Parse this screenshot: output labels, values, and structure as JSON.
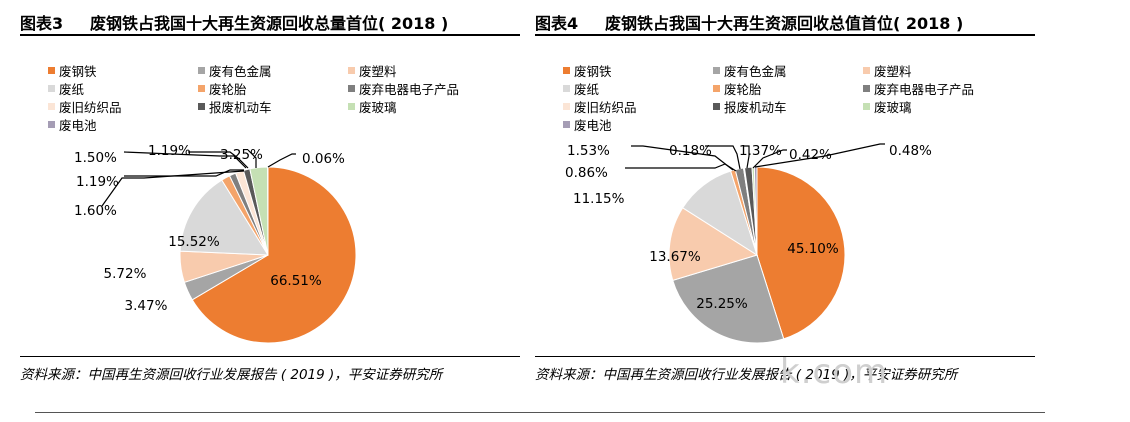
{
  "figures": [
    {
      "label": "图表3",
      "title": "废钢铁占我国十大再生资源回收总量首位( 2018 )",
      "source": "资料来源：中国再生资源回收行业发展报告 ( 2019 )，平安证券研究所"
    },
    {
      "label": "图表4",
      "title": "废钢铁占我国十大再生资源回收总值首位( 2018 )",
      "source": "资料来源：中国再生资源回收行业发展报告 ( 2019 )，平安证券研究所"
    }
  ],
  "legend": [
    "废钢铁",
    "废有色金属",
    "废塑料",
    "废纸",
    "废轮胎",
    "废弃电器电子产品",
    "废旧纺织品",
    "报废机动车",
    "废玻璃",
    "废电池"
  ],
  "colors": [
    "#ED7D31",
    "#A5A5A5",
    "#F8CBAD",
    "#D9D9D9",
    "#F4A46A",
    "#7F7F7F",
    "#FBE5D6",
    "#595959",
    "#C5E0B4",
    "#A59DB5"
  ],
  "watermark": "k.com",
  "chart_data": [
    {
      "type": "pie",
      "title": "废钢铁占我国十大再生资源回收总量首位( 2018 )",
      "categories": [
        "废钢铁",
        "废有色金属",
        "废塑料",
        "废纸",
        "废轮胎",
        "废弃电器电子产品",
        "废旧纺织品",
        "报废机动车",
        "废玻璃",
        "废电池"
      ],
      "values": [
        66.51,
        3.47,
        5.72,
        15.52,
        1.6,
        1.19,
        1.5,
        1.19,
        3.25,
        0.06
      ],
      "labels": [
        "66.51%",
        "3.47%",
        "5.72%",
        "15.52%",
        "1.60%",
        "1.19%",
        "1.50%",
        "1.19%",
        "3.25%",
        "0.06%"
      ]
    },
    {
      "type": "pie",
      "title": "废钢铁占我国十大再生资源回收总值首位( 2018 )",
      "categories": [
        "废钢铁",
        "废有色金属",
        "废塑料",
        "废纸",
        "废轮胎",
        "废弃电器电子产品",
        "废旧纺织品",
        "报废机动车",
        "废玻璃",
        "废电池"
      ],
      "values": [
        45.1,
        25.25,
        13.67,
        11.15,
        0.86,
        1.53,
        0.18,
        1.37,
        0.42,
        0.48
      ],
      "labels": [
        "45.10%",
        "25.25%",
        "13.67%",
        "11.15%",
        "0.86%",
        "1.53%",
        "0.18%",
        "1.37%",
        "0.42%",
        "0.48%"
      ]
    }
  ]
}
